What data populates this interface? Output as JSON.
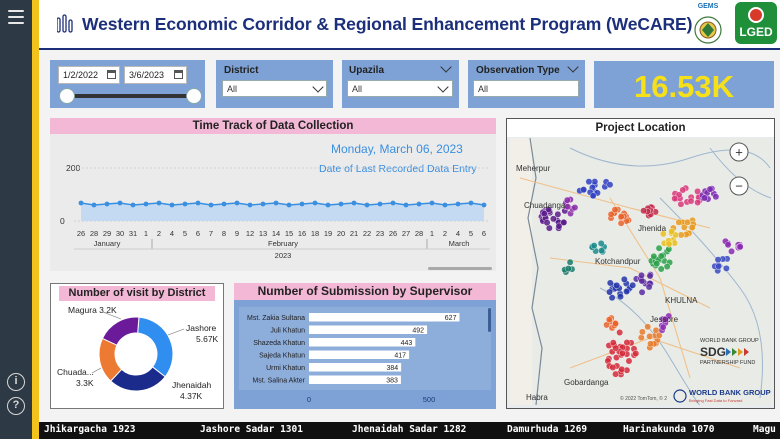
{
  "header": {
    "title": "Western Economic Corridor & Regional Enhancement Program (WeCARE)",
    "gems_label": "GEMS",
    "lged_label": "LGED"
  },
  "filters": {
    "date_start": "1/2/2022",
    "date_end": "3/6/2023",
    "district": {
      "label": "District",
      "value": "All"
    },
    "upazila": {
      "label": "Upazila",
      "value": "All"
    },
    "observation_type": {
      "label": "Observation Type",
      "value": "All"
    }
  },
  "kpi": {
    "value": "16.53K"
  },
  "time_track": {
    "title": "Time Track of Data Collection",
    "last_date": "Monday, March 06, 2023",
    "last_date_caption": "Date of Last Recorded Data Entry",
    "y_ticks": [
      "200",
      "0"
    ],
    "x_ticks": [
      "26",
      "28",
      "29",
      "30",
      "31",
      "1",
      "2",
      "4",
      "5",
      "6",
      "7",
      "8",
      "9",
      "12",
      "13",
      "14",
      "15",
      "16",
      "18",
      "19",
      "20",
      "21",
      "22",
      "23",
      "26",
      "27",
      "28",
      "1",
      "2",
      "4",
      "5",
      "6"
    ],
    "months": [
      "January",
      "February",
      "March"
    ],
    "year": "2023",
    "color": "#3a8fe0"
  },
  "map": {
    "title": "Project Location",
    "places": [
      "Meherpur",
      "Chuadanga",
      "Jhenida",
      "Kotchandpur",
      "KHULNA",
      "Jessore",
      "Gobardanga",
      "Habra"
    ],
    "zoom_in": "+",
    "zoom_out": "−",
    "copyright": "© 2022 TomTom, © 2",
    "wb_line1": "WORLD BANK GROUP",
    "wb_line2": "SDG",
    "wb_line3": "PARTNERSHIP FUND",
    "wb_logo": "WORLD BANK GROUP",
    "wb_logo_sub": "Bringing Fast Data to Forward"
  },
  "district_chart": {
    "title": "Number of visit by District",
    "chart_data": {
      "type": "pie",
      "categories": [
        "Jashore",
        "Jhenaidah",
        "Chuadanga",
        "Magura"
      ],
      "values": [
        5.67,
        4.37,
        3.3,
        3.2
      ],
      "unit": "K",
      "labels": [
        "Jashore 5.67K",
        "Jhenaidah 4.37K",
        "Chuada... 3.3K",
        "Magura 3.2K"
      ],
      "colors": [
        "#2f8ef0",
        "#1a2b8c",
        "#ec7a32",
        "#6b1b9a"
      ]
    }
  },
  "supervisor_chart": {
    "title": "Number of Submission by Supervisor",
    "chart_data": {
      "type": "bar",
      "categories": [
        "Mst. Zakia Sultana",
        "Juli Khatun",
        "Shazeda Khatun",
        "Sajeda Khatun",
        "Urmi Khatun",
        "Mst. Salina Akter"
      ],
      "values": [
        627,
        492,
        443,
        417,
        384,
        383
      ],
      "x_ticks": [
        "0",
        "500"
      ],
      "xlim": [
        0,
        700
      ]
    }
  },
  "ticker": [
    "Jhikargacha 1923",
    "Jashore Sadar 1301",
    "Jhenaidah Sadar 1282",
    "Damurhuda 1269",
    "Harinakunda 1070",
    "Magu"
  ],
  "sidebar": {
    "info_icon": "i",
    "help_icon": "?"
  }
}
